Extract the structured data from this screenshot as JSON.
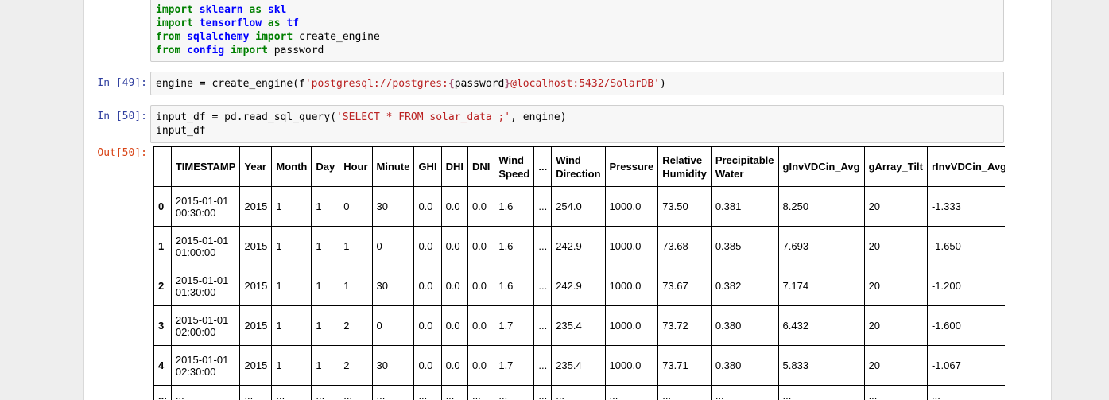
{
  "cells": {
    "imports": {
      "lines": [
        [
          {
            "t": "import",
            "c": "kw"
          },
          {
            "t": " "
          },
          {
            "t": "sklearn",
            "c": "mod"
          },
          {
            "t": " "
          },
          {
            "t": "as",
            "c": "kw"
          },
          {
            "t": " "
          },
          {
            "t": "skl",
            "c": "mod"
          }
        ],
        [
          {
            "t": "import",
            "c": "kw"
          },
          {
            "t": " "
          },
          {
            "t": "tensorflow",
            "c": "mod"
          },
          {
            "t": " "
          },
          {
            "t": "as",
            "c": "kw"
          },
          {
            "t": " "
          },
          {
            "t": "tf",
            "c": "mod"
          }
        ],
        [
          {
            "t": "from",
            "c": "kw"
          },
          {
            "t": " "
          },
          {
            "t": "sqlalchemy",
            "c": "mod"
          },
          {
            "t": " "
          },
          {
            "t": "import",
            "c": "kw"
          },
          {
            "t": " create_engine"
          }
        ],
        [
          {
            "t": "from",
            "c": "kw"
          },
          {
            "t": " "
          },
          {
            "t": "config",
            "c": "mod"
          },
          {
            "t": " "
          },
          {
            "t": "import",
            "c": "kw"
          },
          {
            "t": " password"
          }
        ]
      ]
    },
    "cell49": {
      "prompt": "In [49]:",
      "lines": [
        [
          {
            "t": "engine = create_engine(f"
          },
          {
            "t": "'postgresql://postgres:",
            "c": "str"
          },
          {
            "t": "{",
            "c": "interp"
          },
          {
            "t": "password"
          },
          {
            "t": "}",
            "c": "interp"
          },
          {
            "t": "@localhost:5432/SolarDB'",
            "c": "str"
          },
          {
            "t": ")"
          }
        ]
      ]
    },
    "cell50": {
      "prompt": "In [50]:",
      "out_prompt": "Out[50]:",
      "lines": [
        [
          {
            "t": "input_df = pd.read_sql_query("
          },
          {
            "t": "'SELECT * FROM solar_data ;'",
            "c": "str"
          },
          {
            "t": ", engine)"
          }
        ],
        [
          {
            "t": "input_df"
          }
        ]
      ]
    }
  },
  "dataframe": {
    "columns": [
      "",
      "TIMESTAMP",
      "Year",
      "Month",
      "Day",
      "Hour",
      "Minute",
      "GHI",
      "DHI",
      "DNI",
      "Wind\nSpeed",
      "...",
      "Wind\nDirection",
      "Pressure",
      "Relative\nHumidity",
      "Precipitable\nWater",
      "gInvVDCin_Avg",
      "gArray_Tilt",
      "rInvVDCin_Avg"
    ],
    "rows": [
      [
        "0",
        "2015-01-01\n00:30:00",
        "2015",
        "1",
        "1",
        "0",
        "30",
        "0.0",
        "0.0",
        "0.0",
        "1.6",
        "...",
        "254.0",
        "1000.0",
        "73.50",
        "0.381",
        "8.250",
        "20",
        "-1.333"
      ],
      [
        "1",
        "2015-01-01\n01:00:00",
        "2015",
        "1",
        "1",
        "1",
        "0",
        "0.0",
        "0.0",
        "0.0",
        "1.6",
        "...",
        "242.9",
        "1000.0",
        "73.68",
        "0.385",
        "7.693",
        "20",
        "-1.650"
      ],
      [
        "2",
        "2015-01-01\n01:30:00",
        "2015",
        "1",
        "1",
        "1",
        "30",
        "0.0",
        "0.0",
        "0.0",
        "1.6",
        "...",
        "242.9",
        "1000.0",
        "73.67",
        "0.382",
        "7.174",
        "20",
        "-1.200"
      ],
      [
        "3",
        "2015-01-01\n02:00:00",
        "2015",
        "1",
        "1",
        "2",
        "0",
        "0.0",
        "0.0",
        "0.0",
        "1.7",
        "...",
        "235.4",
        "1000.0",
        "73.72",
        "0.380",
        "6.432",
        "20",
        "-1.600"
      ],
      [
        "4",
        "2015-01-01\n02:30:00",
        "2015",
        "1",
        "1",
        "2",
        "30",
        "0.0",
        "0.0",
        "0.0",
        "1.7",
        "...",
        "235.4",
        "1000.0",
        "73.71",
        "0.380",
        "5.833",
        "20",
        "-1.067"
      ],
      [
        "...",
        "...",
        "...",
        "...",
        "...",
        "...",
        "...",
        "...",
        "...",
        "...",
        "...",
        "...",
        "...",
        "...",
        "...",
        "...",
        "...",
        "...",
        "..."
      ]
    ]
  }
}
